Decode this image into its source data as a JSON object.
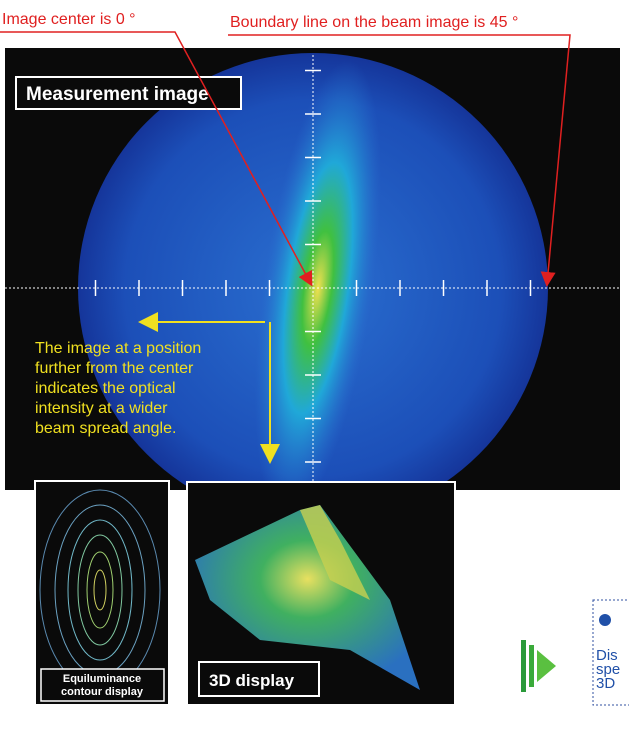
{
  "annotations": {
    "center": "Image center is 0 °",
    "boundary": "Boundary line on the beam image is 45 °"
  },
  "measurement": {
    "label": "Measurement image",
    "note_lines": [
      "The image at a position",
      "further from the center",
      "indicates the optical",
      "intensity at a wider",
      "beam spread angle."
    ]
  },
  "contour": {
    "label_lines": [
      "Equiluminance",
      "contour display"
    ]
  },
  "display3d": {
    "label": "3D display"
  },
  "side_panel": {
    "lines": [
      "Dis",
      "spe",
      "3D"
    ]
  }
}
